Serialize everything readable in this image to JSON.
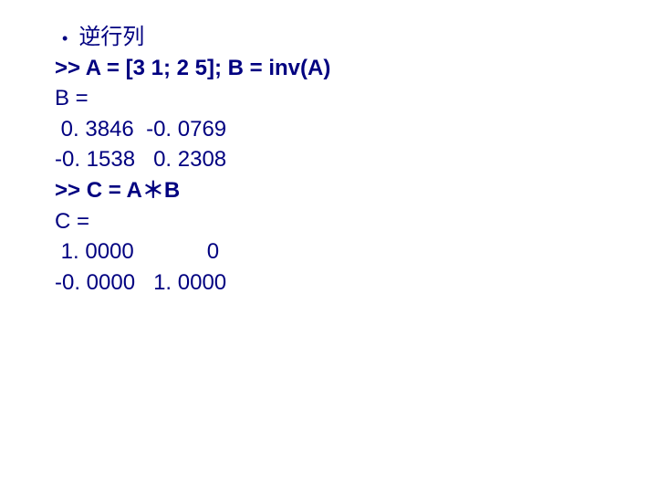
{
  "text_color": "#000080",
  "background_color": "#ffffff",
  "font_size": 24,
  "lines": {
    "title": "逆行列",
    "cmd1": ">> A = [3 1; 2 5]; B = inv(A)",
    "out_b_header": "B =",
    "out_b_row1": " 0. 3846  -0. 0769",
    "out_b_row2": "-0. 1538   0. 2308",
    "cmd2": ">> C = A＊B",
    "out_c_header": "C =",
    "out_c_row1": " 1. 0000            0",
    "out_c_row2": "-0. 0000   1. 0000"
  }
}
